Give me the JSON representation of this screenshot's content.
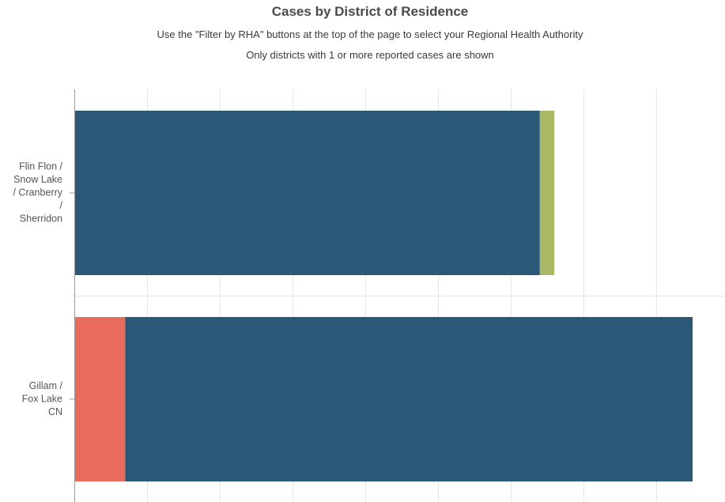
{
  "chart_data": {
    "type": "bar",
    "orientation": "horizontal",
    "stacked": true,
    "title": "Cases by District of Residence",
    "subtitles": [
      "Use the \"Filter by RHA\" buttons at the top of the page to select your Regional Health Authority",
      "Only districts with 1 or more reported cases are shown"
    ],
    "categories": [
      "Flin Flon / Snow Lake / Cranberry / Sherridon",
      "Gillam / Fox Lake CN"
    ],
    "category_label_lines": [
      [
        "Flin Flon /",
        "Snow Lake",
        "/ Cranberry",
        "/",
        "Sherridon"
      ],
      [
        "Gillam /",
        "Fox Lake",
        "CN"
      ]
    ],
    "series": [
      {
        "color": "#e96b5b",
        "values": [
          0,
          7
        ]
      },
      {
        "color": "#2b5876",
        "values": [
          64,
          78
        ]
      },
      {
        "color": "#aab965",
        "values": [
          2,
          0
        ]
      }
    ],
    "xlim": [
      0,
      90
    ],
    "grid": true,
    "legend": "none"
  }
}
